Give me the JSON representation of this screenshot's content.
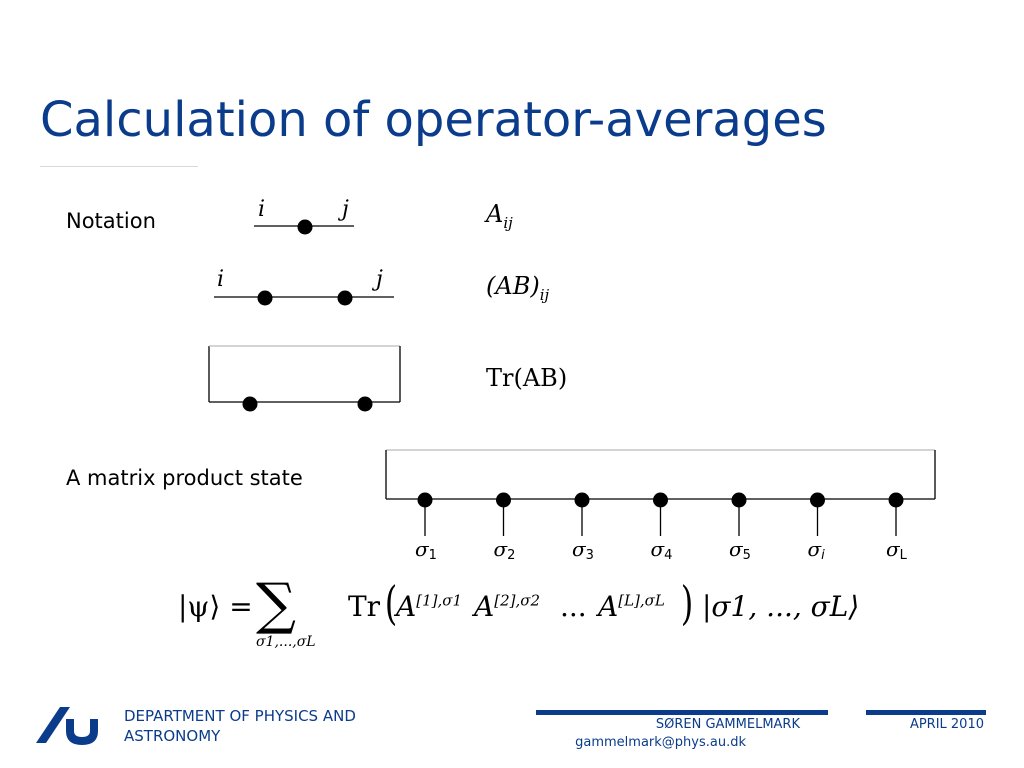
{
  "slide": {
    "title": "Calculation of operator-averages",
    "notation_label": "Notation",
    "mps_label": "A matrix product state"
  },
  "diagrams": {
    "single": {
      "left_index": "i",
      "right_index": "j",
      "expression_base": "A",
      "expression_sub": "ij"
    },
    "double": {
      "left_index": "i",
      "right_index": "j",
      "expression_base": "(AB)",
      "expression_sub": "ij"
    },
    "trace": {
      "expression": "Tr(AB)"
    },
    "mps_sites": [
      {
        "symbol": "σ",
        "sub": "1"
      },
      {
        "symbol": "σ",
        "sub": "2"
      },
      {
        "symbol": "σ",
        "sub": "3"
      },
      {
        "symbol": "σ",
        "sub": "4"
      },
      {
        "symbol": "σ",
        "sub": "5"
      },
      {
        "symbol": "σ",
        "sub": "i"
      },
      {
        "symbol": "σ",
        "sub": "L"
      }
    ]
  },
  "formula": {
    "lhs": "|ψ⟩ =",
    "sum_symbol": "∑",
    "sum_sub": "σ1,...,σL",
    "tr": "Tr",
    "a1_base": "A",
    "a1_sup": "[1],σ1",
    "a2_base": "A",
    "a2_sup": "[2],σ2",
    "dots": "...",
    "aL_base": "A",
    "aL_sup": "[L],σL",
    "ket": "|σ1, ..., σL⟩"
  },
  "footer": {
    "department": "DEPARTMENT OF PHYSICS AND ASTRONOMY",
    "author": "SØREN GAMMELMARK",
    "email": "gammelmark@phys.au.dk",
    "date": "APRIL 2010"
  },
  "colors": {
    "accent": "#0b3c8c"
  },
  "icons": {
    "logo": "aarhus-university-logo-icon"
  }
}
